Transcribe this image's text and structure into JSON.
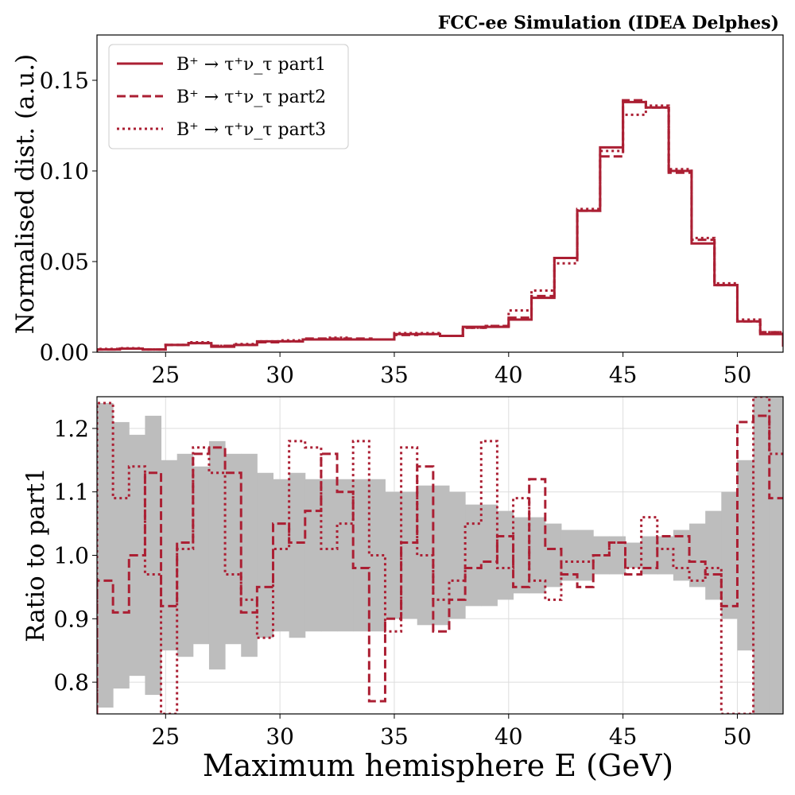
{
  "header": {
    "title": "FCC-ee Simulation (IDEA Delphes)"
  },
  "colors": {
    "series": "#ab1f33",
    "band": "#bdbdbd",
    "grid": "#dddddd"
  },
  "chart_data": [
    {
      "type": "line",
      "ylabel": "Normalised dist. (a.u.)",
      "xlim": [
        22,
        52
      ],
      "ylim": [
        0,
        0.175
      ],
      "xticks": [
        "25",
        "30",
        "35",
        "40",
        "45",
        "50"
      ],
      "yticks": [
        "0.00",
        "0.05",
        "0.10",
        "0.15"
      ],
      "grid": false,
      "legend_position": "top-left",
      "bin_edges": [
        22,
        23,
        24,
        25,
        26,
        27,
        28,
        29,
        30,
        31,
        32,
        33,
        34,
        35,
        36,
        37,
        38,
        39,
        40,
        41,
        42,
        43,
        44,
        45,
        46,
        47,
        48,
        49,
        50,
        51,
        52
      ],
      "series": [
        {
          "name": "B⁺ → τ⁺ν_τ part1",
          "style": "solid",
          "values": [
            0.0015,
            0.002,
            0.0015,
            0.004,
            0.005,
            0.003,
            0.004,
            0.006,
            0.006,
            0.007,
            0.007,
            0.007,
            0.007,
            0.01,
            0.01,
            0.009,
            0.014,
            0.014,
            0.018,
            0.03,
            0.052,
            0.078,
            0.113,
            0.138,
            0.135,
            0.1,
            0.06,
            0.037,
            0.017,
            0.01,
            0.003
          ]
        },
        {
          "name": "B⁺ → τ⁺ν_τ part2",
          "style": "dashed",
          "values": [
            0.0015,
            0.002,
            0.0015,
            0.004,
            0.005,
            0.0035,
            0.004,
            0.0055,
            0.006,
            0.0075,
            0.0075,
            0.0075,
            0.007,
            0.0095,
            0.01,
            0.009,
            0.0135,
            0.0145,
            0.019,
            0.031,
            0.052,
            0.078,
            0.108,
            0.139,
            0.135,
            0.099,
            0.062,
            0.037,
            0.017,
            0.011,
            0.004
          ]
        },
        {
          "name": "B⁺ → τ⁺ν_τ part3",
          "style": "dotted",
          "values": [
            0.0018,
            0.0022,
            0.0015,
            0.004,
            0.0055,
            0.0035,
            0.0045,
            0.006,
            0.0065,
            0.007,
            0.008,
            0.007,
            0.007,
            0.0105,
            0.0105,
            0.009,
            0.0135,
            0.0145,
            0.023,
            0.034,
            0.049,
            0.079,
            0.111,
            0.131,
            0.136,
            0.101,
            0.063,
            0.038,
            0.018,
            0.011,
            0.005
          ]
        }
      ]
    },
    {
      "type": "line",
      "xlabel": "Maximum hemisphere E (GeV)",
      "ylabel": "Ratio to part1",
      "xlim": [
        22,
        52
      ],
      "ylim": [
        0.75,
        1.25
      ],
      "xticks": [
        "25",
        "30",
        "35",
        "40",
        "45",
        "50"
      ],
      "yticks": [
        "0.8",
        "0.9",
        "1.0",
        "1.1",
        "1.2"
      ],
      "grid": true,
      "bin_edges": [
        22,
        22.7,
        23.4,
        24.1,
        24.8,
        25.5,
        26.2,
        26.9,
        27.6,
        28.3,
        29,
        29.7,
        30.4,
        31.1,
        31.8,
        32.5,
        33.2,
        33.9,
        34.6,
        35.3,
        36,
        36.7,
        37.4,
        38.1,
        38.8,
        39.5,
        40.2,
        40.9,
        41.6,
        42.3,
        43,
        43.7,
        44.4,
        45.1,
        45.8,
        46.5,
        47.2,
        47.9,
        48.6,
        49.3,
        50,
        50.7,
        51.4,
        52
      ],
      "band": {
        "lower": [
          0.76,
          0.79,
          0.81,
          0.78,
          0.85,
          0.84,
          0.86,
          0.82,
          0.86,
          0.84,
          0.87,
          0.88,
          0.87,
          0.88,
          0.88,
          0.88,
          0.88,
          0.88,
          0.9,
          0.9,
          0.89,
          0.89,
          0.9,
          0.92,
          0.92,
          0.93,
          0.94,
          0.94,
          0.95,
          0.96,
          0.96,
          0.97,
          0.97,
          0.98,
          0.97,
          0.97,
          0.96,
          0.95,
          0.93,
          0.9,
          0.85,
          0.75,
          0.75
        ],
        "upper": [
          1.24,
          1.21,
          1.19,
          1.22,
          1.15,
          1.16,
          1.14,
          1.18,
          1.16,
          1.16,
          1.13,
          1.12,
          1.13,
          1.12,
          1.12,
          1.12,
          1.12,
          1.12,
          1.1,
          1.1,
          1.11,
          1.11,
          1.1,
          1.08,
          1.08,
          1.07,
          1.06,
          1.06,
          1.05,
          1.04,
          1.04,
          1.03,
          1.03,
          1.02,
          1.03,
          1.03,
          1.04,
          1.05,
          1.07,
          1.1,
          1.15,
          1.25,
          1.25
        ]
      },
      "series": [
        {
          "name": "B⁺ → τ⁺ν_τ part2",
          "style": "dashed",
          "values": [
            0.96,
            0.91,
            1.0,
            1.13,
            0.92,
            1.02,
            1.16,
            1.17,
            1.13,
            0.91,
            0.95,
            1.05,
            1.02,
            1.07,
            1.16,
            1.1,
            0.98,
            0.77,
            0.9,
            1.02,
            1.14,
            0.88,
            0.93,
            0.98,
            0.99,
            1.03,
            0.95,
            1.12,
            1.01,
            0.97,
            0.95,
            1.0,
            1.02,
            0.97,
            0.98,
            1.03,
            1.03,
            0.99,
            0.97,
            0.92,
            1.21,
            1.22,
            1.09
          ]
        },
        {
          "name": "B⁺ → τ⁺ν_τ part3",
          "style": "dotted",
          "values": [
            1.24,
            1.09,
            1.14,
            0.97,
            0.75,
            1.01,
            1.17,
            1.13,
            0.97,
            0.93,
            0.87,
            1.01,
            1.18,
            1.17,
            1.01,
            1.05,
            1.18,
            1.0,
            0.88,
            1.17,
            1.0,
            0.93,
            0.96,
            1.05,
            1.18,
            0.98,
            1.09,
            0.96,
            0.93,
            0.99,
            0.99,
            1.0,
            1.02,
            0.98,
            1.06,
            1.01,
            0.98,
            0.96,
            0.98,
            0.75,
            0.75,
            1.26,
            1.16
          ]
        }
      ]
    }
  ]
}
